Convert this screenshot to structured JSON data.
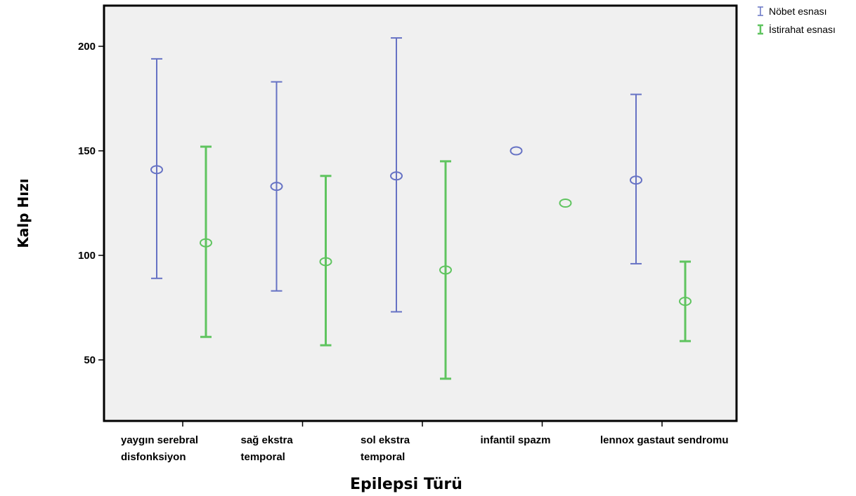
{
  "chart_data": {
    "type": "errorbar",
    "title": "",
    "xlabel": "Epilepsi Türü",
    "ylabel": "Kalp Hızı",
    "ylim": [
      20,
      220
    ],
    "yticks": [
      50,
      100,
      150,
      200
    ],
    "grid": false,
    "legend_position": "top-right",
    "categories": [
      [
        "yaygın serebral",
        "disfonksiyon"
      ],
      [
        "sağ ekstra",
        "temporal"
      ],
      [
        "sol ekstra",
        "temporal"
      ],
      [
        "infantil spazm"
      ],
      [
        "lennox gastaut sendromu"
      ]
    ],
    "series": [
      {
        "name": "Nöbet esnası",
        "color": "#6672c4",
        "mean": [
          141,
          133,
          138,
          150,
          136
        ],
        "lower": [
          89,
          83,
          73,
          150,
          96
        ],
        "upper": [
          194,
          183,
          204,
          150,
          177
        ]
      },
      {
        "name": "İstirahat esnası",
        "color": "#5fc45f",
        "mean": [
          106,
          97,
          93,
          125,
          78
        ],
        "lower": [
          61,
          57,
          41,
          125,
          59
        ],
        "upper": [
          152,
          138,
          145,
          125,
          97
        ]
      }
    ]
  }
}
